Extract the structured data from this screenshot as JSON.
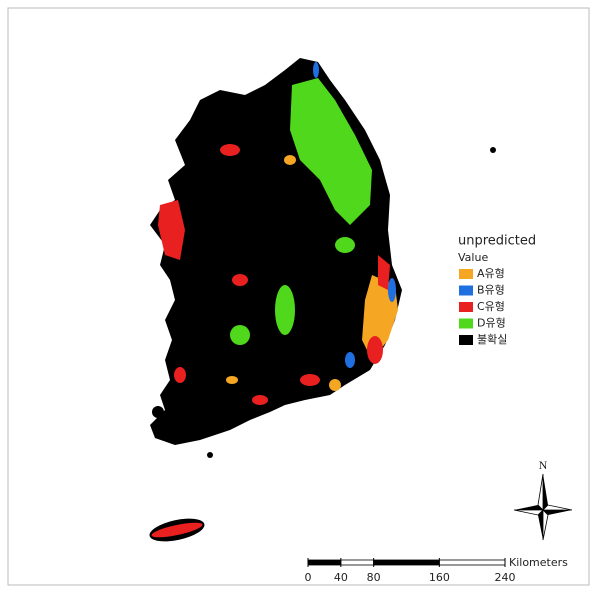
{
  "legend": {
    "title": "unpredicted",
    "subtitle": "Value",
    "items": [
      {
        "label": "A유형",
        "color": "#f5a623"
      },
      {
        "label": "B유형",
        "color": "#1f6fe0"
      },
      {
        "label": "C유형",
        "color": "#e8201f"
      },
      {
        "label": "D유형",
        "color": "#4fd81c"
      },
      {
        "label": "불확실",
        "color": "#000000"
      }
    ]
  },
  "north_arrow": {
    "label": "N"
  },
  "scale_bar": {
    "unit": "Kilometers",
    "ticks": [
      0,
      40,
      80,
      160,
      240
    ]
  }
}
